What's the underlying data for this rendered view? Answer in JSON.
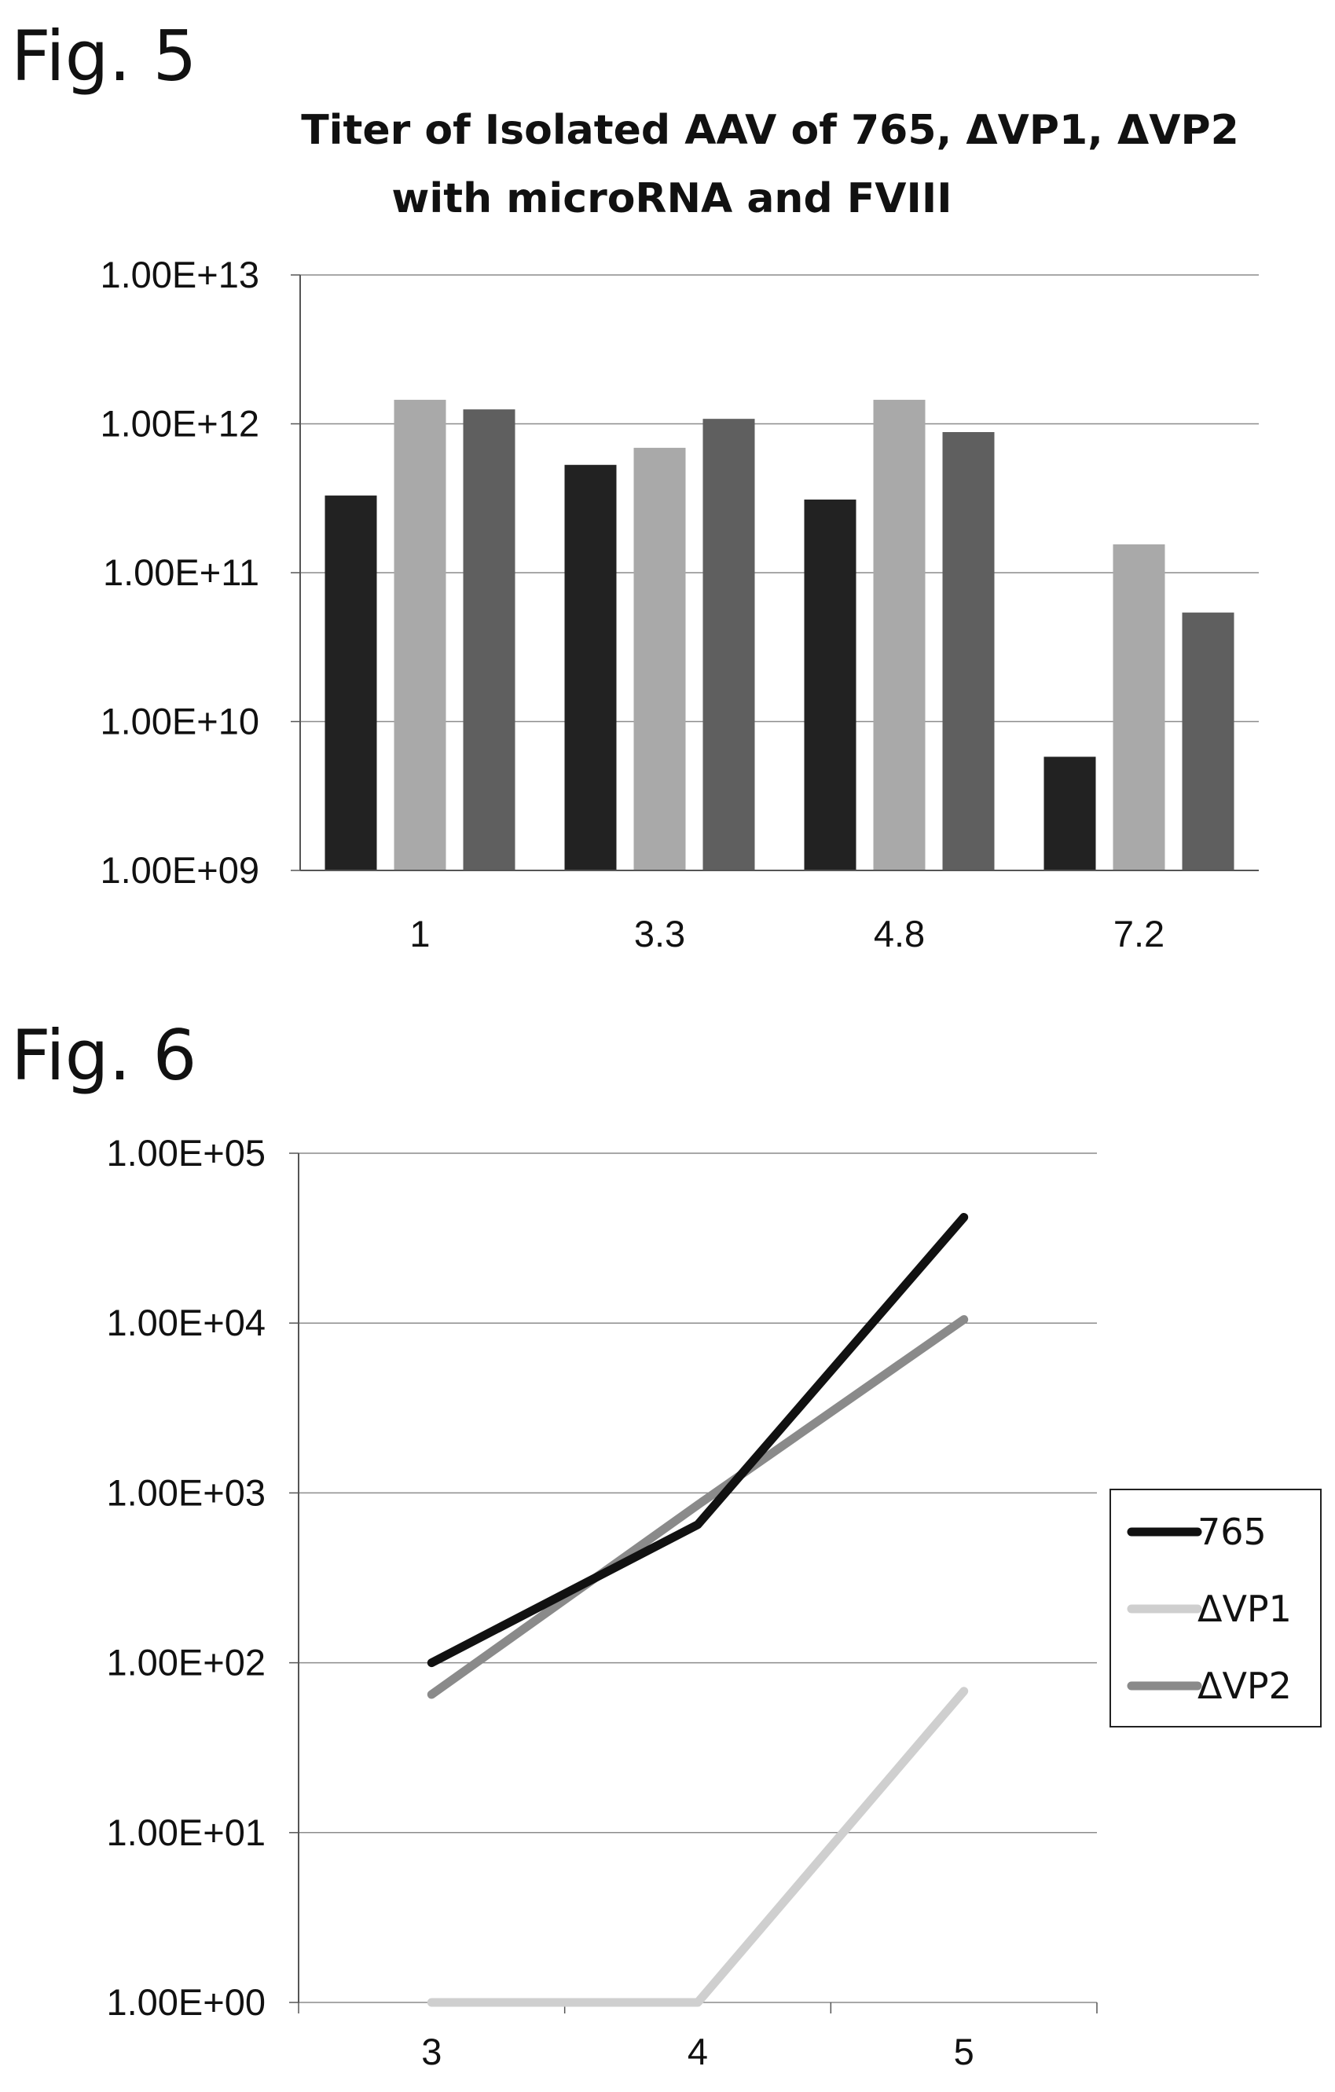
{
  "figures": {
    "fig5_label": "Fig. 5",
    "fig6_label": "Fig. 6"
  },
  "chart_data": [
    {
      "type": "bar",
      "title": "Titer of Isolated AAV of 765, ΔVP1, ΔVP2",
      "subtitle": "with microRNA and FVIII",
      "xlabel": "",
      "ylabel": "",
      "yscale": "log",
      "ylim": [
        1000000000.0,
        10000000000000.0
      ],
      "grid": true,
      "categories": [
        "1",
        "3.3",
        "4.8",
        "7.2"
      ],
      "ytick_labels": [
        "1.00E+13",
        "1.00E+12",
        "1.00E+11",
        "1.00E+10",
        "1.00E+09"
      ],
      "series": [
        {
          "values": [
            330000000000.0,
            530000000000.0,
            310000000000.0,
            5800000000.0
          ],
          "color": "#222222"
        },
        {
          "values": [
            1450000000000.0,
            690000000000.0,
            1450000000000.0,
            155000000000.0
          ],
          "color": "#a9a9a9"
        },
        {
          "values": [
            1250000000000.0,
            1080000000000.0,
            880000000000.0,
            54000000000.0
          ],
          "color": "#5f5f5f"
        }
      ]
    },
    {
      "type": "line",
      "title": "",
      "xlabel": "",
      "ylabel": "",
      "yscale": "log",
      "ylim": [
        1,
        100000.0
      ],
      "grid": true,
      "legend_position": "right",
      "x": [
        "3",
        "4",
        "5"
      ],
      "ytick_labels": [
        "1.00E+05",
        "1.00E+04",
        "1.00E+03",
        "1.00E+02",
        "1.00E+01",
        "1.00E+00"
      ],
      "series": [
        {
          "name": "765",
          "values": [
            100,
            650,
            42000
          ],
          "color": "#111111"
        },
        {
          "name": "ΔVP1",
          "values": [
            1,
            1,
            68
          ],
          "color": "#cfcfcf"
        },
        {
          "name": "ΔVP2",
          "values": [
            65,
            850,
            10500
          ],
          "color": "#8a8a8a"
        }
      ]
    }
  ]
}
